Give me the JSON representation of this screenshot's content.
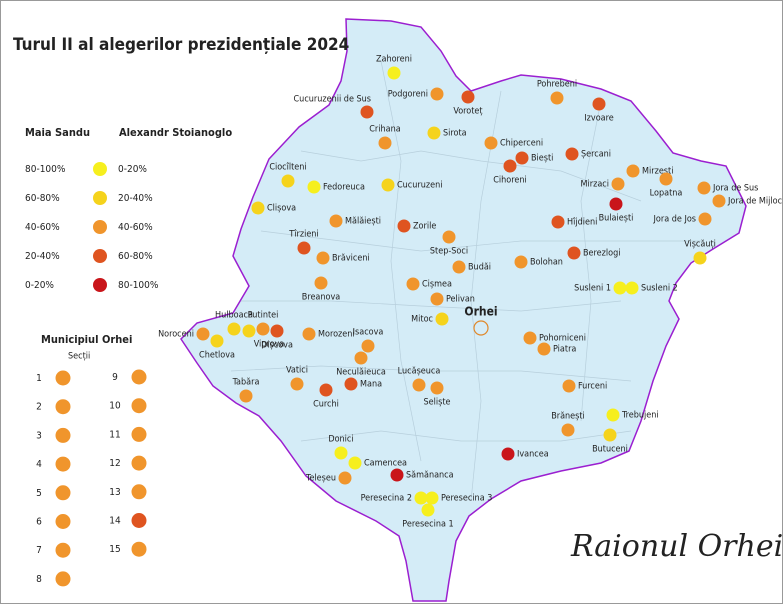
{
  "title": "Turul II al alegerilor prezidențiale 2024",
  "region_label": "Raionul Orhei",
  "legend": {
    "left_title": "Maia Sandu",
    "right_title": "Alexandr Stoianoglo",
    "rows": [
      {
        "left": "80-100%",
        "right": "0-20%",
        "color": "#f6ef1e"
      },
      {
        "left": "60-80%",
        "right": "20-40%",
        "color": "#f5d31c"
      },
      {
        "left": "40-60%",
        "right": "40-60%",
        "color": "#f0952c"
      },
      {
        "left": "20-40%",
        "right": "60-80%",
        "color": "#df5420"
      },
      {
        "left": "0-20%",
        "right": "80-100%",
        "color": "#c9151a"
      }
    ]
  },
  "municipality": {
    "title": "Municipiul Orhei",
    "subtitle": "Secții",
    "sections": [
      {
        "label": 1,
        "color": "#f0952c"
      },
      {
        "label": 2,
        "color": "#f0952c"
      },
      {
        "label": 3,
        "color": "#f0952c"
      },
      {
        "label": 4,
        "color": "#f0952c"
      },
      {
        "label": 5,
        "color": "#f0952c"
      },
      {
        "label": 6,
        "color": "#f0952c"
      },
      {
        "label": 7,
        "color": "#f0952c"
      },
      {
        "label": 8,
        "color": "#f0952c"
      },
      {
        "label": 9,
        "color": "#f0952c"
      },
      {
        "label": 10,
        "color": "#f0952c"
      },
      {
        "label": 11,
        "color": "#f0952c"
      },
      {
        "label": 12,
        "color": "#f0952c"
      },
      {
        "label": 13,
        "color": "#f0952c"
      },
      {
        "label": 14,
        "color": "#df5420"
      },
      {
        "label": 15,
        "color": "#f0952c"
      }
    ]
  },
  "city": "Orhei",
  "villages": [
    {
      "name": "Zahoreni",
      "color": "#f6ef1e"
    },
    {
      "name": "Podgoreni",
      "color": "#f0952c"
    },
    {
      "name": "Voroteț",
      "color": "#df5420"
    },
    {
      "name": "Pohrebeni",
      "color": "#f0952c"
    },
    {
      "name": "Izvoare",
      "color": "#df5420"
    },
    {
      "name": "Cucuruzenii de Sus",
      "color": "#df5420"
    },
    {
      "name": "Crihana",
      "color": "#f0952c"
    },
    {
      "name": "Sirota",
      "color": "#f5d31c"
    },
    {
      "name": "Chiperceni",
      "color": "#f0952c"
    },
    {
      "name": "Biești",
      "color": "#df5420"
    },
    {
      "name": "Cihoreni",
      "color": "#df5420"
    },
    {
      "name": "Șercani",
      "color": "#df5420"
    },
    {
      "name": "Mirzești",
      "color": "#f0952c"
    },
    {
      "name": "Lopatna",
      "color": "#f0952c"
    },
    {
      "name": "Jora de Sus",
      "color": "#f0952c"
    },
    {
      "name": "Jora de Mijloc",
      "color": "#f0952c"
    },
    {
      "name": "Jora de Jos",
      "color": "#f0952c"
    },
    {
      "name": "Mirzaci",
      "color": "#f0952c"
    },
    {
      "name": "Bulaiești",
      "color": "#c9151a"
    },
    {
      "name": "Ciocîlteni",
      "color": "#f5d31c"
    },
    {
      "name": "Fedoreuca",
      "color": "#f6ef1e"
    },
    {
      "name": "Cucuruzeni",
      "color": "#f5d31c"
    },
    {
      "name": "Clișova",
      "color": "#f5d31c"
    },
    {
      "name": "Mălăiești",
      "color": "#f0952c"
    },
    {
      "name": "Zorile",
      "color": "#df5420"
    },
    {
      "name": "Hîjdieni",
      "color": "#df5420"
    },
    {
      "name": "Vișcăuți",
      "color": "#f5d31c"
    },
    {
      "name": "Tîrzieni",
      "color": "#df5420"
    },
    {
      "name": "Step-Soci",
      "color": "#f0952c"
    },
    {
      "name": "Brăviceni",
      "color": "#f0952c"
    },
    {
      "name": "Budăi",
      "color": "#f0952c"
    },
    {
      "name": "Bolohan",
      "color": "#f0952c"
    },
    {
      "name": "Berezlogi",
      "color": "#df5420"
    },
    {
      "name": "Susleni 1",
      "color": "#f6ef1e"
    },
    {
      "name": "Susleni 2",
      "color": "#f6ef1e"
    },
    {
      "name": "Breanova",
      "color": "#f0952c"
    },
    {
      "name": "Cișmea",
      "color": "#f0952c"
    },
    {
      "name": "Pelivan",
      "color": "#f0952c"
    },
    {
      "name": "Mitoc",
      "color": "#f5d31c"
    },
    {
      "name": "Pohorniceni",
      "color": "#f0952c"
    },
    {
      "name": "Piatra",
      "color": "#f0952c"
    },
    {
      "name": "Noroceni",
      "color": "#f0952c"
    },
    {
      "name": "Chetlova",
      "color": "#f5d31c"
    },
    {
      "name": "Hulboaca",
      "color": "#f5d31c"
    },
    {
      "name": "Viprova",
      "color": "#f5d31c"
    },
    {
      "name": "Putintei",
      "color": "#f0952c"
    },
    {
      "name": "Dișcova",
      "color": "#df5420"
    },
    {
      "name": "Morozeni",
      "color": "#f0952c"
    },
    {
      "name": "Isacova",
      "color": "#f0952c"
    },
    {
      "name": "Neculăieuca",
      "color": "#f0952c"
    },
    {
      "name": "Tabăra",
      "color": "#f0952c"
    },
    {
      "name": "Vatici",
      "color": "#f0952c"
    },
    {
      "name": "Curchi",
      "color": "#df5420"
    },
    {
      "name": "Mana",
      "color": "#df5420"
    },
    {
      "name": "Lucășeuca",
      "color": "#f0952c"
    },
    {
      "name": "Seliște",
      "color": "#f0952c"
    },
    {
      "name": "Furceni",
      "color": "#f0952c"
    },
    {
      "name": "Brănești",
      "color": "#f0952c"
    },
    {
      "name": "Trebujeni",
      "color": "#f6ef1e"
    },
    {
      "name": "Butuceni",
      "color": "#f5d31c"
    },
    {
      "name": "Ivancea",
      "color": "#c9151a"
    },
    {
      "name": "Donici",
      "color": "#f6ef1e"
    },
    {
      "name": "Camencea",
      "color": "#f6ef1e"
    },
    {
      "name": "Teleșeu",
      "color": "#f0952c"
    },
    {
      "name": "Sămănanca",
      "color": "#c9151a"
    },
    {
      "name": "Peresecina 2",
      "color": "#f6ef1e"
    },
    {
      "name": "Peresecina 3",
      "color": "#f6ef1e"
    },
    {
      "name": "Peresecina 1",
      "color": "#f6ef1e"
    }
  ]
}
